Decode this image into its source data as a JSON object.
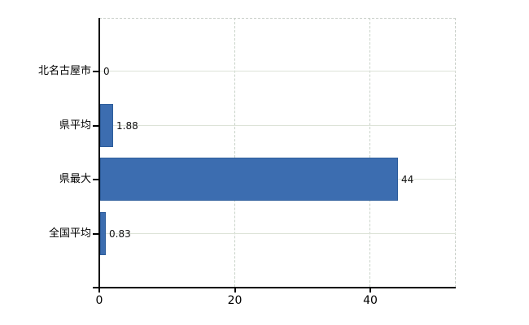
{
  "chart": {
    "background": "#FFFFFF",
    "colors": {
      "bar_fill": "#3C6DB0",
      "bar_border": "#2E5E9C",
      "axis": "#000000",
      "horizontal_gridline": "#DDE3D8",
      "vertical_gridline": "#C8D2C8",
      "plot_border_dashed": "#C9CFC9",
      "category_text": "#000000",
      "value_text": "#111111"
    }
  },
  "chart_data": {
    "type": "bar",
    "orientation": "horizontal",
    "title": "",
    "xlabel": "",
    "ylabel": "",
    "categories": [
      "北名古屋市",
      "県平均",
      "県最大",
      "全国平均"
    ],
    "values": [
      0,
      1.88,
      44,
      0.83
    ],
    "value_labels": [
      "0",
      "1.88",
      "44",
      "0.83"
    ],
    "xlim": [
      0,
      52.6
    ],
    "x_ticks": [
      0,
      20,
      40
    ],
    "x_tick_labels": [
      "0",
      "20",
      "40"
    ],
    "grid": true,
    "legend": false
  }
}
